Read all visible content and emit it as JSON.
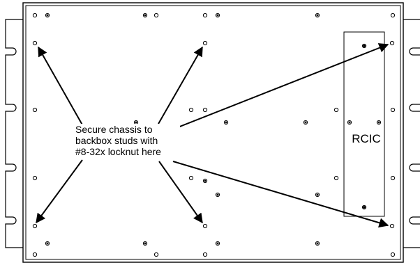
{
  "callout": {
    "lines": [
      "Secure chassis to",
      "backbox studs with",
      "#8-32x locknut here"
    ]
  },
  "module": {
    "label": "RCIC"
  },
  "colors": {
    "stroke": "#000000",
    "background": "#ffffff"
  }
}
